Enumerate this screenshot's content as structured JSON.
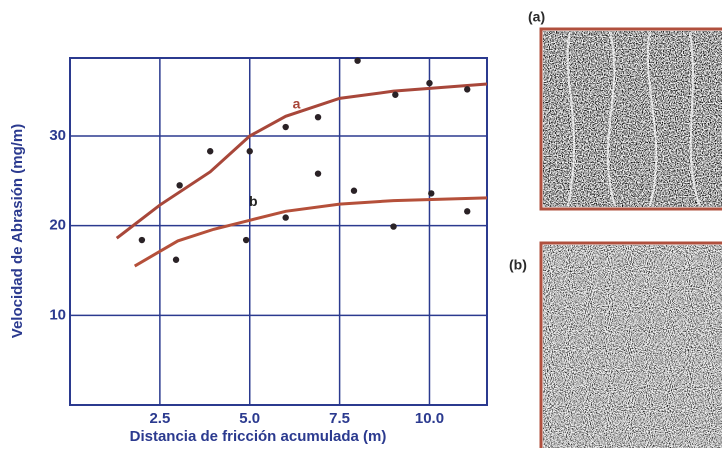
{
  "chart_data": {
    "type": "scatter",
    "xlabel": "Distancia de fricción acumulada (m)",
    "ylabel": "Velocidad de Abrasión (mg/m)",
    "xlim": [
      0,
      11.6
    ],
    "ylim": [
      0,
      38.7
    ],
    "xticks": [
      2.5,
      {
        "value": 5,
        "label": "5.0"
      },
      7.5,
      {
        "value": 10,
        "label": "10.0"
      }
    ],
    "yticks": [
      10,
      20,
      30
    ],
    "grid": true,
    "series": [
      {
        "name": "a",
        "color": "#2a2226",
        "x": [
          2.0,
          3.05,
          3.9,
          5.0,
          6.0,
          6.9,
          8.0,
          9.05,
          10.0,
          11.05
        ],
        "values": [
          18.4,
          24.5,
          28.3,
          28.3,
          31.0,
          32.1,
          38.4,
          34.6,
          35.9,
          35.2
        ]
      },
      {
        "name": "b",
        "color": "#2a2226",
        "x": [
          2.95,
          4.9,
          6.0,
          6.9,
          7.9,
          9.0,
          10.05,
          11.05
        ],
        "values": [
          16.2,
          18.4,
          20.9,
          25.8,
          23.9,
          19.9,
          23.6,
          21.6
        ]
      }
    ],
    "fits": [
      {
        "color": "#a8473a",
        "x": [
          1.3,
          2.5,
          3.9,
          5.0,
          6.0,
          7.5,
          9.0,
          11.6
        ],
        "values": [
          18.6,
          22.3,
          26.0,
          30.0,
          32.2,
          34.2,
          35.0,
          35.8
        ]
      },
      {
        "color": "#b5503a",
        "x": [
          1.8,
          3.0,
          4.0,
          5.0,
          6.0,
          7.5,
          9.0,
          11.6
        ],
        "values": [
          15.5,
          18.3,
          19.6,
          20.6,
          21.6,
          22.4,
          22.8,
          23.1
        ]
      }
    ]
  },
  "panels": [
    {
      "label": "(a)"
    },
    {
      "label": "(b)"
    }
  ]
}
